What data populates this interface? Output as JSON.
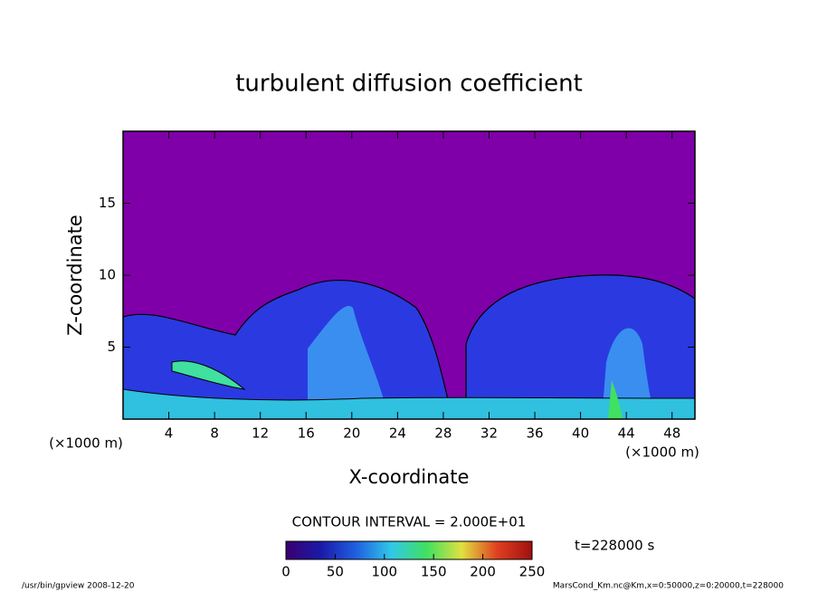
{
  "chart_data": {
    "type": "contour",
    "title": "turbulent diffusion coefficient",
    "xlabel": "X-coordinate",
    "ylabel": "Z-coordinate",
    "x_unit_label": "(×1000 m)",
    "xlim": [
      0,
      50
    ],
    "xticks": [
      4,
      8,
      12,
      16,
      20,
      24,
      28,
      32,
      36,
      40,
      44,
      48
    ],
    "ylim": [
      0,
      20
    ],
    "yticks": [
      5,
      10,
      15
    ],
    "contour_interval_label": "CONTOUR INTERVAL = 2.000E+01",
    "time_label": "t=228000 s",
    "colorbar": {
      "lim": [
        0,
        250
      ],
      "ticks": [
        0,
        50,
        100,
        150,
        200,
        250
      ],
      "colors": [
        "#3a006f",
        "#1a1aa8",
        "#2060e0",
        "#30c8e8",
        "#40e060",
        "#e0e040",
        "#e04020",
        "#a01010"
      ]
    },
    "background_color": "#7f00a8",
    "footer_left": "/usr/bin/gpview  2008-12-20",
    "footer_right": "MarsCond_Km.nc@Km,x=0:50000,z=0:20000,t=228000"
  }
}
